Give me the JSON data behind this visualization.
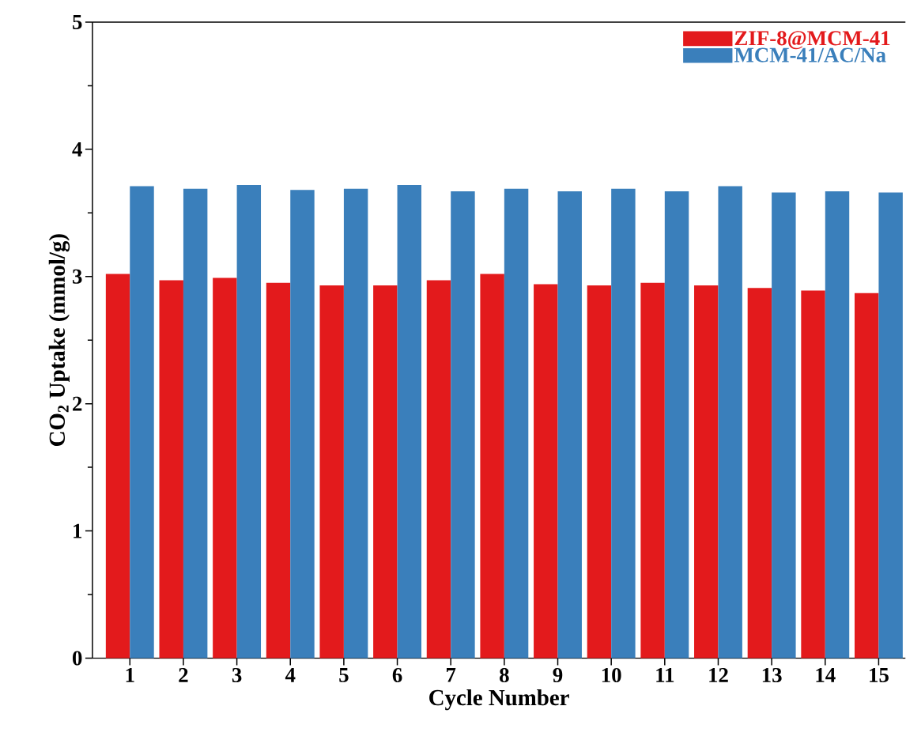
{
  "chart_data": {
    "type": "bar",
    "xlabel": "Cycle Number",
    "ylabel": "CO$_{2}$ Uptake (mmol/g)",
    "categories": [
      "1",
      "2",
      "3",
      "4",
      "5",
      "6",
      "7",
      "8",
      "9",
      "10",
      "11",
      "12",
      "13",
      "14",
      "15"
    ],
    "series": [
      {
        "name": "ZIF-8@MCM-41",
        "color": "#e31a1c",
        "values": [
          3.02,
          2.97,
          2.99,
          2.95,
          2.93,
          2.93,
          2.97,
          3.02,
          2.94,
          2.93,
          2.95,
          2.93,
          2.91,
          2.89,
          2.87
        ]
      },
      {
        "name": "MCM-41/AC/Na",
        "color": "#3a7fbb",
        "values": [
          3.71,
          3.69,
          3.72,
          3.68,
          3.69,
          3.72,
          3.67,
          3.69,
          3.67,
          3.69,
          3.67,
          3.71,
          3.66,
          3.67,
          3.66
        ]
      }
    ],
    "ylim": [
      0,
      5
    ],
    "yticks": [
      0,
      1,
      2,
      3,
      4,
      5
    ],
    "grid": false,
    "legend": "top right"
  }
}
